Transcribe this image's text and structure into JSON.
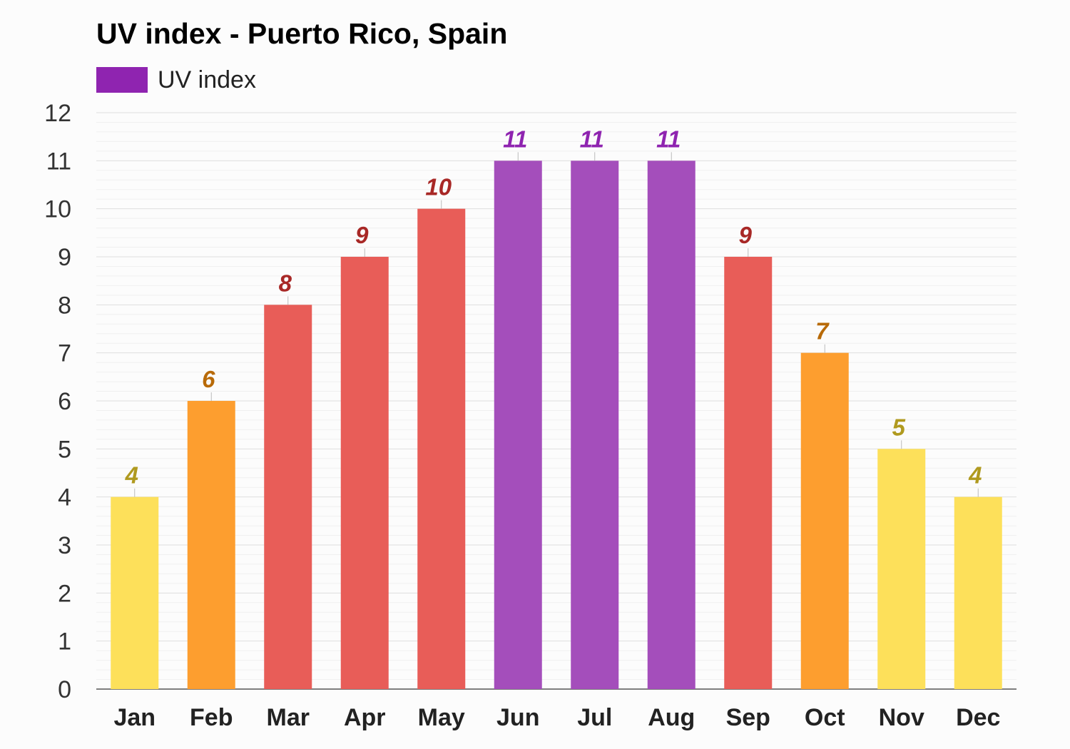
{
  "chart_data": {
    "type": "bar",
    "title": "UV index - Puerto Rico, Spain",
    "legend": [
      {
        "label": "UV index",
        "color": "#8f24b0"
      }
    ],
    "legend_position": "top-left",
    "categories": [
      "Jan",
      "Feb",
      "Mar",
      "Apr",
      "May",
      "Jun",
      "Jul",
      "Aug",
      "Sep",
      "Oct",
      "Nov",
      "Dec"
    ],
    "series": [
      {
        "name": "UV index",
        "values": [
          4,
          6,
          8,
          9,
          10,
          11,
          11,
          11,
          9,
          7,
          5,
          4
        ]
      }
    ],
    "data_labels": [
      "4",
      "6",
      "8",
      "9",
      "10",
      "11",
      "11",
      "11",
      "9",
      "7",
      "5",
      "4"
    ],
    "ylim": [
      0,
      12
    ],
    "yticks": [
      0,
      1,
      2,
      3,
      4,
      5,
      6,
      7,
      8,
      9,
      10,
      11,
      12
    ],
    "grid": true,
    "color_scale": [
      {
        "min": 0,
        "max": 5,
        "bar": "#fde05a",
        "label": "#b09a1f"
      },
      {
        "min": 6,
        "max": 7,
        "bar": "#fd9e2f",
        "label": "#b86a08"
      },
      {
        "min": 8,
        "max": 10,
        "bar": "#e85d58",
        "label": "#a82826"
      },
      {
        "min": 11,
        "max": 99,
        "bar": "#a44ebb",
        "label": "#8f24b0"
      }
    ]
  }
}
